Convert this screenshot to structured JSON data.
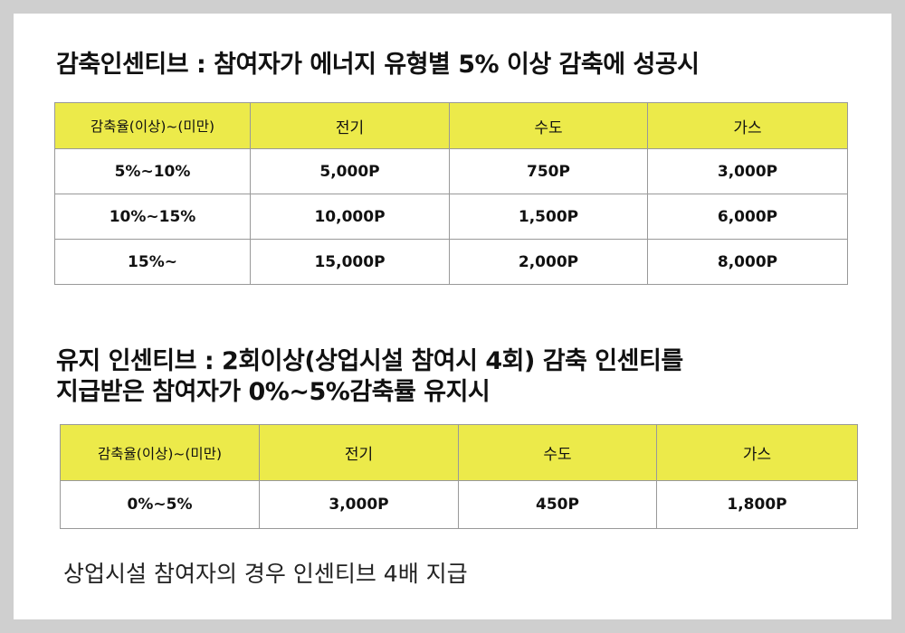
{
  "section1": {
    "title": "감축인센티브 : 참여자가 에너지 유형별 5% 이상 감축에 성공시",
    "headers": [
      "감축율(이상)~(미만)",
      "전기",
      "수도",
      "가스"
    ],
    "rows": [
      [
        "5%~10%",
        "5,000P",
        "750P",
        "3,000P"
      ],
      [
        "10%~15%",
        "10,000P",
        "1,500P",
        "6,000P"
      ],
      [
        "15%~",
        "15,000P",
        "2,000P",
        "8,000P"
      ]
    ]
  },
  "section2": {
    "title_line1": "유지 인센티브 : 2회이상(상업시설 참여시 4회) 감축 인센티를",
    "title_line2": "지급받은 참여자가 0%~5%감축률 유지시",
    "headers": [
      "감축율(이상)~(미만)",
      "전기",
      "수도",
      "가스"
    ],
    "rows": [
      [
        "0%~5%",
        "3,000P",
        "450P",
        "1,800P"
      ]
    ]
  },
  "footnote": "상업시설 참여자의 경우 인센티브 4배 지급",
  "colors": {
    "background": "#cfcfcf",
    "sheet": "#ffffff",
    "header_fill": "#ecea4a",
    "border": "#999999"
  }
}
